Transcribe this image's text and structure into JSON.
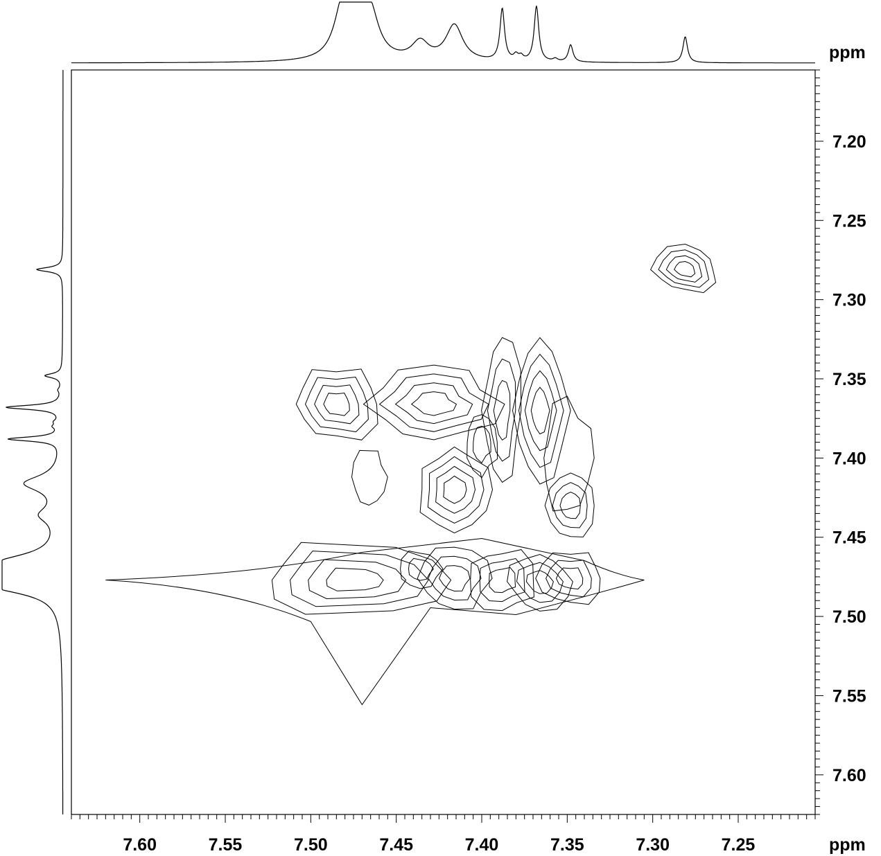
{
  "chart_data": {
    "type": "contour",
    "x_unit": "ppm",
    "y_unit": "ppm",
    "xlim": [
      7.64,
      7.205
    ],
    "ylim": [
      7.155,
      7.625
    ],
    "x_ticks": [
      "7.60",
      "7.55",
      "7.50",
      "7.45",
      "7.40",
      "7.35",
      "7.30",
      "7.25"
    ],
    "y_ticks": [
      "7.20",
      "7.25",
      "7.30",
      "7.35",
      "7.40",
      "7.45",
      "7.50",
      "7.55",
      "7.60"
    ],
    "x_tick_values": [
      7.6,
      7.55,
      7.5,
      7.45,
      7.4,
      7.35,
      7.3,
      7.25
    ],
    "y_tick_values": [
      7.2,
      7.25,
      7.3,
      7.35,
      7.4,
      7.45,
      7.5,
      7.55,
      7.6
    ],
    "projection_peaks": [
      {
        "ppm": 7.481,
        "height": 0.9
      },
      {
        "ppm": 7.472,
        "height": 0.78
      },
      {
        "ppm": 7.465,
        "height": 0.65
      },
      {
        "ppm": 7.436,
        "height": 0.33
      },
      {
        "ppm": 7.416,
        "height": 0.65
      },
      {
        "ppm": 7.388,
        "height": 0.94
      },
      {
        "ppm": 7.38,
        "height": 0.1
      },
      {
        "ppm": 7.377,
        "height": 0.08
      },
      {
        "ppm": 7.368,
        "height": 1.0
      },
      {
        "ppm": 7.357,
        "height": 0.05
      },
      {
        "ppm": 7.348,
        "height": 0.31
      },
      {
        "ppm": 7.281,
        "height": 0.47
      }
    ],
    "cross_peaks": [
      {
        "x": 7.281,
        "y": 7.281,
        "rx": 0.019,
        "ry": 0.015,
        "levels": 4
      },
      {
        "x": 7.485,
        "y": 7.366,
        "rx": 0.026,
        "ry": 0.023,
        "levels": 4
      },
      {
        "x": 7.428,
        "y": 7.366,
        "rx": 0.037,
        "ry": 0.022,
        "levels": 4
      },
      {
        "x": 7.476,
        "y": 7.477,
        "rx": 0.052,
        "ry": 0.024,
        "levels": 4
      },
      {
        "x": 7.416,
        "y": 7.42,
        "rx": 0.022,
        "ry": 0.027,
        "levels": 4
      },
      {
        "x": 7.366,
        "y": 7.37,
        "rx": 0.016,
        "ry": 0.048,
        "levels": 4
      },
      {
        "x": 7.388,
        "y": 7.37,
        "rx": 0.011,
        "ry": 0.045,
        "levels": 3
      },
      {
        "x": 7.348,
        "y": 7.43,
        "rx": 0.014,
        "ry": 0.022,
        "levels": 3
      },
      {
        "x": 7.348,
        "y": 7.476,
        "rx": 0.02,
        "ry": 0.018,
        "levels": 3
      },
      {
        "x": 7.366,
        "y": 7.478,
        "rx": 0.018,
        "ry": 0.018,
        "levels": 3
      },
      {
        "x": 7.388,
        "y": 7.477,
        "rx": 0.02,
        "ry": 0.02,
        "levels": 3
      },
      {
        "x": 7.416,
        "y": 7.476,
        "rx": 0.02,
        "ry": 0.02,
        "levels": 3
      },
      {
        "x": 7.436,
        "y": 7.47,
        "rx": 0.012,
        "ry": 0.012,
        "levels": 2
      },
      {
        "x": 7.4,
        "y": 7.39,
        "rx": 0.01,
        "ry": 0.02,
        "levels": 2
      },
      {
        "x": 7.35,
        "y": 7.4,
        "rx": 0.015,
        "ry": 0.035,
        "levels": 1
      },
      {
        "x": 7.466,
        "y": 7.412,
        "rx": 0.01,
        "ry": 0.018,
        "levels": 1
      }
    ]
  }
}
